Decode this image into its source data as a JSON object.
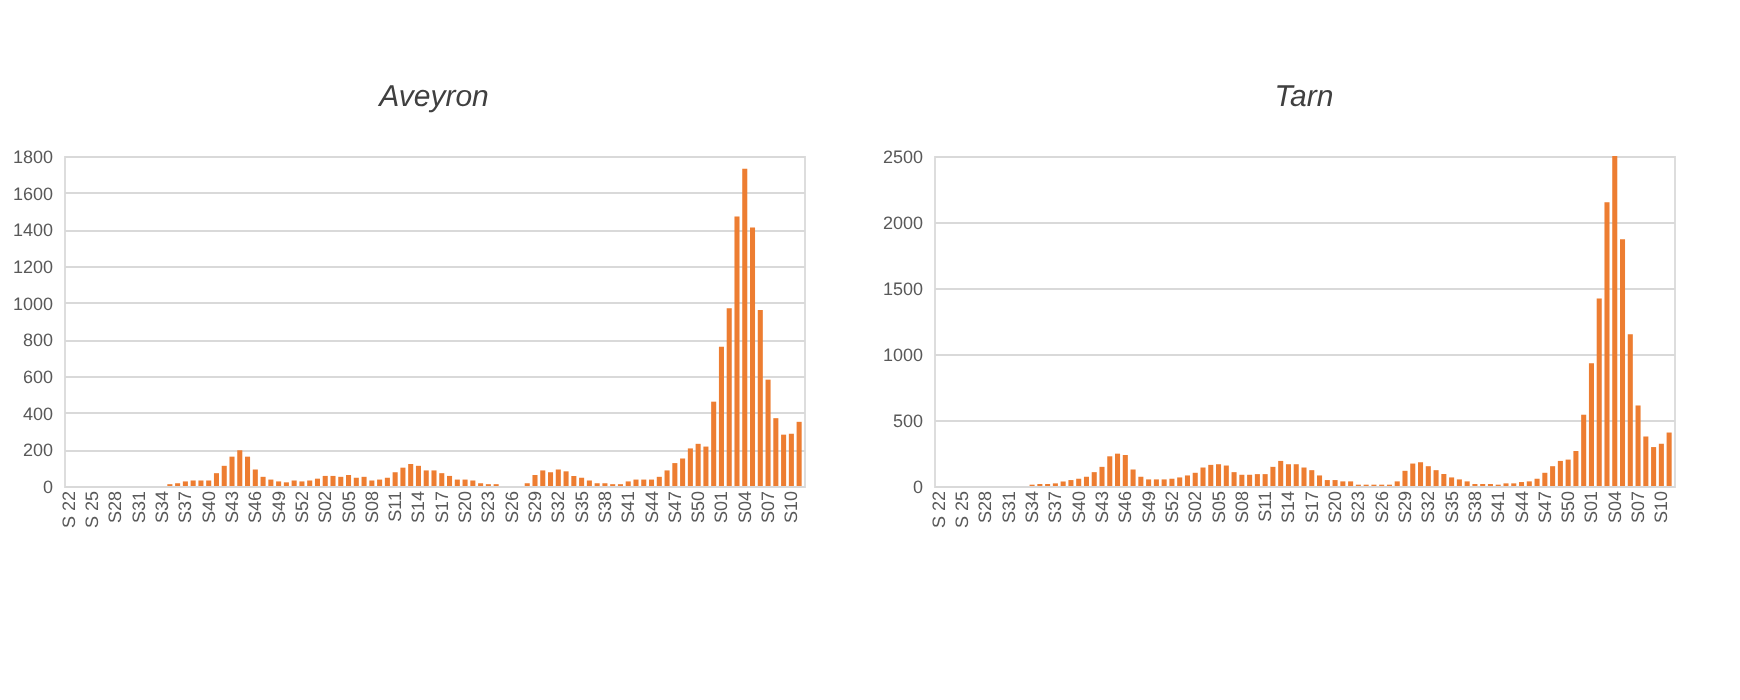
{
  "chart_data": [
    {
      "type": "bar",
      "title": "Aveyron",
      "color": "#ed7d31",
      "grid": "y",
      "ylim": [
        0,
        1800
      ],
      "yticks": [
        0,
        200,
        400,
        600,
        800,
        1000,
        1200,
        1400,
        1600,
        1800
      ],
      "categories": [
        "S 22",
        null,
        null,
        "S 25",
        null,
        null,
        "S28",
        null,
        null,
        "S31",
        null,
        null,
        "S34",
        null,
        null,
        "S37",
        null,
        null,
        "S40",
        null,
        null,
        "S43",
        null,
        null,
        "S46",
        null,
        null,
        "S49",
        null,
        null,
        "S52",
        null,
        null,
        "S02",
        null,
        null,
        "S05",
        null,
        null,
        "S08",
        null,
        null,
        "S11",
        null,
        null,
        "S14",
        null,
        null,
        "S17",
        null,
        null,
        "S20",
        null,
        null,
        "S23",
        null,
        null,
        "S26",
        null,
        null,
        "S29",
        null,
        null,
        "S32",
        null,
        null,
        "S35",
        null,
        null,
        "S38",
        null,
        null,
        "S41",
        null,
        null,
        "S44",
        null,
        null,
        "S47",
        null,
        null,
        "S50",
        null,
        null,
        "S01",
        null,
        null,
        "S04",
        null,
        null,
        "S07",
        null,
        null,
        "S10",
        null
      ],
      "values": [
        0,
        0,
        0,
        0,
        0,
        0,
        0,
        0,
        0,
        0,
        0,
        0,
        0,
        10,
        15,
        25,
        30,
        30,
        30,
        70,
        110,
        160,
        195,
        160,
        90,
        50,
        35,
        25,
        20,
        30,
        25,
        30,
        40,
        55,
        55,
        50,
        60,
        45,
        50,
        30,
        35,
        45,
        75,
        100,
        120,
        110,
        85,
        85,
        70,
        55,
        35,
        35,
        30,
        15,
        10,
        10,
        0,
        0,
        0,
        15,
        60,
        85,
        75,
        90,
        80,
        55,
        45,
        30,
        15,
        15,
        10,
        10,
        25,
        35,
        35,
        35,
        50,
        85,
        125,
        150,
        205,
        230,
        215,
        460,
        760,
        970,
        1470,
        1730,
        1410,
        960,
        580,
        370,
        280,
        285,
        350
      ]
    },
    {
      "type": "bar",
      "title": "Tarn",
      "color": "#ed7d31",
      "grid": "y",
      "ylim": [
        0,
        2500
      ],
      "yticks": [
        0,
        500,
        1000,
        1500,
        2000,
        2500
      ],
      "categories": [
        "S 22",
        null,
        null,
        "S 25",
        null,
        null,
        "S28",
        null,
        null,
        "S31",
        null,
        null,
        "S34",
        null,
        null,
        "S37",
        null,
        null,
        "S40",
        null,
        null,
        "S43",
        null,
        null,
        "S46",
        null,
        null,
        "S49",
        null,
        null,
        "S52",
        null,
        null,
        "S02",
        null,
        null,
        "S05",
        null,
        null,
        "S08",
        null,
        null,
        "S11",
        null,
        null,
        "S14",
        null,
        null,
        "S17",
        null,
        null,
        "S20",
        null,
        null,
        "S23",
        null,
        null,
        "S26",
        null,
        null,
        "S29",
        null,
        null,
        "S32",
        null,
        null,
        "S35",
        null,
        null,
        "S38",
        null,
        null,
        "S41",
        null,
        null,
        "S44",
        null,
        null,
        "S47",
        null,
        null,
        "S50",
        null,
        null,
        "S01",
        null,
        null,
        "S04",
        null,
        null,
        "S07",
        null,
        null,
        "S10",
        null
      ],
      "values": [
        0,
        0,
        0,
        0,
        0,
        0,
        0,
        0,
        0,
        0,
        0,
        0,
        10,
        15,
        15,
        20,
        35,
        45,
        55,
        70,
        105,
        145,
        225,
        245,
        235,
        125,
        70,
        50,
        50,
        50,
        55,
        65,
        80,
        100,
        140,
        160,
        165,
        155,
        105,
        85,
        85,
        90,
        90,
        145,
        190,
        165,
        165,
        140,
        120,
        80,
        45,
        45,
        35,
        35,
        10,
        10,
        10,
        10,
        10,
        35,
        115,
        170,
        180,
        150,
        120,
        90,
        65,
        50,
        35,
        15,
        15,
        15,
        10,
        20,
        20,
        30,
        35,
        55,
        100,
        150,
        190,
        200,
        265,
        540,
        930,
        1420,
        2150,
        2500,
        1870,
        1150,
        610,
        375,
        295,
        320,
        405
      ]
    }
  ]
}
